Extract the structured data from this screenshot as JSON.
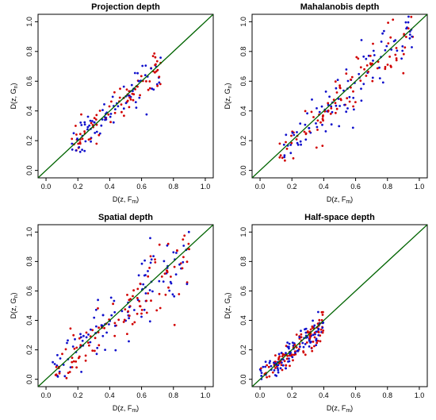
{
  "colors": {
    "red_points": "#d10000",
    "blue_points": "#1010cc",
    "reference_line": "#006400",
    "axes": "#000000"
  },
  "chart_data": [
    {
      "type": "scatter",
      "title": "Projection depth",
      "xlabel": "D(z, F",
      "xlabel_sub": "m",
      "xlabel_end": ")",
      "ylabel": "D(z, G",
      "ylabel_sub": "n",
      "ylabel_end": ")",
      "xlim": [
        -0.05,
        1.05
      ],
      "ylim": [
        -0.05,
        1.05
      ],
      "xticks": [
        "0.0",
        "0.2",
        "0.4",
        "0.6",
        "0.8",
        "1.0"
      ],
      "yticks": [
        "0.0",
        "0.2",
        "0.4",
        "0.6",
        "0.8",
        "1.0"
      ],
      "reference_line": "y = x",
      "point_cloud": {
        "n": 160,
        "x_range": [
          0.16,
          0.72
        ],
        "spread": 0.055,
        "slope": 0.94,
        "intercept": 0.02
      }
    },
    {
      "type": "scatter",
      "title": "Mahalanobis depth",
      "xlabel": "D(z, F",
      "xlabel_sub": "m",
      "xlabel_end": ")",
      "ylabel": "D(z, G",
      "ylabel_sub": "n",
      "ylabel_end": ")",
      "xlim": [
        -0.05,
        1.05
      ],
      "ylim": [
        -0.05,
        1.05
      ],
      "xticks": [
        "0.0",
        "0.2",
        "0.4",
        "0.6",
        "0.8",
        "1.0"
      ],
      "yticks": [
        "0.0",
        "0.2",
        "0.4",
        "0.6",
        "0.8",
        "1.0"
      ],
      "reference_line": "y = x",
      "point_cloud": {
        "n": 200,
        "x_range": [
          0.12,
          0.96
        ],
        "spread": 0.08,
        "slope": 0.98,
        "intercept": 0.0
      }
    },
    {
      "type": "scatter",
      "title": "Spatial depth",
      "xlabel": "D(z, F",
      "xlabel_sub": "m",
      "xlabel_end": ")",
      "ylabel": "D(z, G",
      "ylabel_sub": "n",
      "ylabel_end": ")",
      "xlim": [
        -0.05,
        1.05
      ],
      "ylim": [
        -0.05,
        1.05
      ],
      "xticks": [
        "0.0",
        "0.2",
        "0.4",
        "0.6",
        "0.8",
        "1.0"
      ],
      "yticks": [
        "0.0",
        "0.2",
        "0.4",
        "0.6",
        "0.8",
        "1.0"
      ],
      "reference_line": "y = x",
      "point_cloud": {
        "n": 220,
        "x_range": [
          0.03,
          0.9
        ],
        "spread": 0.1,
        "slope": 0.93,
        "intercept": 0.02
      }
    },
    {
      "type": "scatter",
      "title": "Half-space depth",
      "xlabel": "D(z, F",
      "xlabel_sub": "m",
      "xlabel_end": ")",
      "ylabel": "D(z, G",
      "ylabel_sub": "n",
      "ylabel_end": ")",
      "xlim": [
        -0.05,
        1.05
      ],
      "ylim": [
        -0.05,
        1.05
      ],
      "xticks": [
        "0.0",
        "0.2",
        "0.4",
        "0.6",
        "0.8",
        "1.0"
      ],
      "yticks": [
        "0.0",
        "0.2",
        "0.4",
        "0.6",
        "0.8",
        "1.0"
      ],
      "reference_line": "y = x",
      "point_cloud": {
        "n": 200,
        "x_range": [
          0.0,
          0.4
        ],
        "spread": 0.055,
        "slope": 0.88,
        "intercept": 0.01
      }
    }
  ]
}
